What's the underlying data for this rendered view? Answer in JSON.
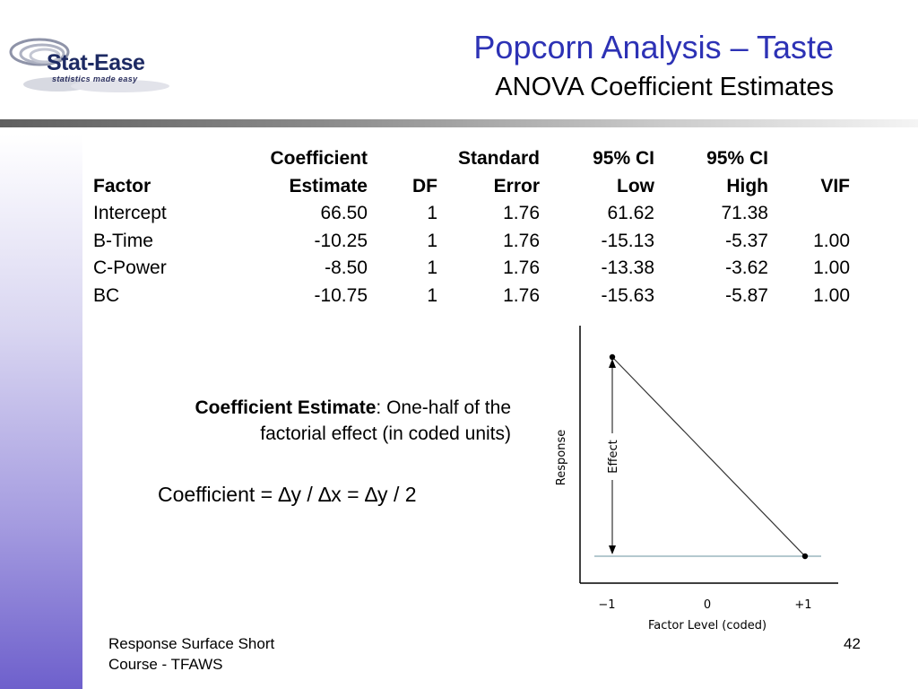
{
  "logo": {
    "name": "Stat-Ease",
    "tagline": "statistics made easy"
  },
  "title": "Popcorn Analysis – Taste",
  "subtitle": "ANOVA Coefficient Estimates",
  "table": {
    "headers": [
      [
        "",
        "Coefficient",
        "",
        "Standard",
        "95% CI",
        "95% CI",
        ""
      ],
      [
        "Factor",
        "Estimate",
        "DF",
        "Error",
        "Low",
        "High",
        "VIF"
      ]
    ],
    "rows": [
      [
        "Intercept",
        "66.50",
        "1",
        "1.76",
        "61.62",
        "71.38",
        ""
      ],
      [
        "B-Time",
        "-10.25",
        "1",
        "1.76",
        "-15.13",
        "-5.37",
        "1.00"
      ],
      [
        "C-Power",
        "-8.50",
        "1",
        "1.76",
        "-13.38",
        "-3.62",
        "1.00"
      ],
      [
        "BC",
        "-10.75",
        "1",
        "1.76",
        "-15.63",
        "-5.87",
        "1.00"
      ]
    ]
  },
  "definition": {
    "term": "Coefficient Estimate",
    "text_line1": ":  One-half of the",
    "text_line2": "factorial effect (in coded units)"
  },
  "formula": "Coefficient = ∆y / ∆x = ∆y / 2",
  "diagram": {
    "ylabel": "Response",
    "xlabel": "Factor Level (coded)",
    "effect_label": "Effect",
    "ticks": [
      "−1",
      "0",
      "+1"
    ]
  },
  "footer": {
    "line1": "Response Surface Short",
    "line2": "Course - TFAWS",
    "page": "42"
  }
}
